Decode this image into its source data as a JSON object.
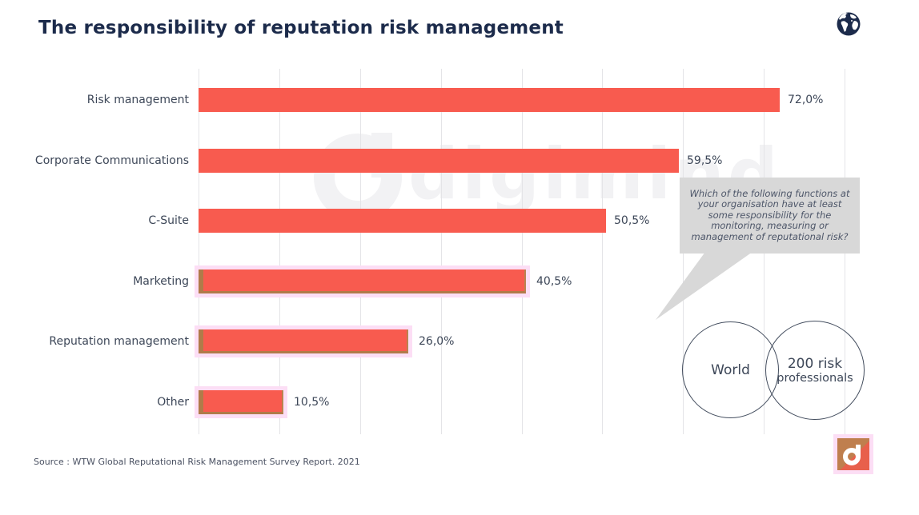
{
  "header": {
    "title": "The responsibility of reputation risk management"
  },
  "watermark": {
    "text": "digimind"
  },
  "chart_data": {
    "type": "bar",
    "orientation": "horizontal",
    "title": "The responsibility of reputation risk management",
    "categories": [
      "Risk management",
      "Corporate Communications",
      "C-Suite",
      "Marketing",
      "Reputation management",
      "Other"
    ],
    "values": [
      72.0,
      59.5,
      50.5,
      40.5,
      26.0,
      10.5
    ],
    "value_labels": [
      "72,0%",
      "59,5%",
      "50,5%",
      "40,5%",
      "26,0%",
      "10,5%"
    ],
    "xlim": [
      0,
      80
    ],
    "gridline_step_percent": 10,
    "grid": "vertical-lines-only",
    "legend": "none",
    "highlighted_categories": [
      "Marketing",
      "Reputation management",
      "Other"
    ]
  },
  "callout": {
    "text": "Which of the following functions at your organisation have at least some responsibility for the monitoring, measuring or management of reputational risk?"
  },
  "venn": {
    "left_circle_label": "World",
    "right_circle_label_line1": "200 risk",
    "right_circle_label_line2": "professionals"
  },
  "footer": {
    "source": "Source : WTW Global Reputational Risk Management Survey Report. 2021"
  },
  "icons": {
    "top_right": "globe-icon",
    "bottom_right": "digimind-logo"
  },
  "colors": {
    "bar": "#f85b4f",
    "title_text": "#1c2b4b",
    "label_text": "#3d4758",
    "gridline": "#e4e4e7",
    "callout_bg": "#d8d8d8",
    "callout_text": "#4c5568",
    "highlight_outline": "#b07b49",
    "highlight_glow": "#fcdef5",
    "circle_outline": "#434d5e",
    "logo_red": "#e8604c",
    "logo_olive": "#bf7f4e",
    "globe_navy": "#1c2b4b"
  }
}
